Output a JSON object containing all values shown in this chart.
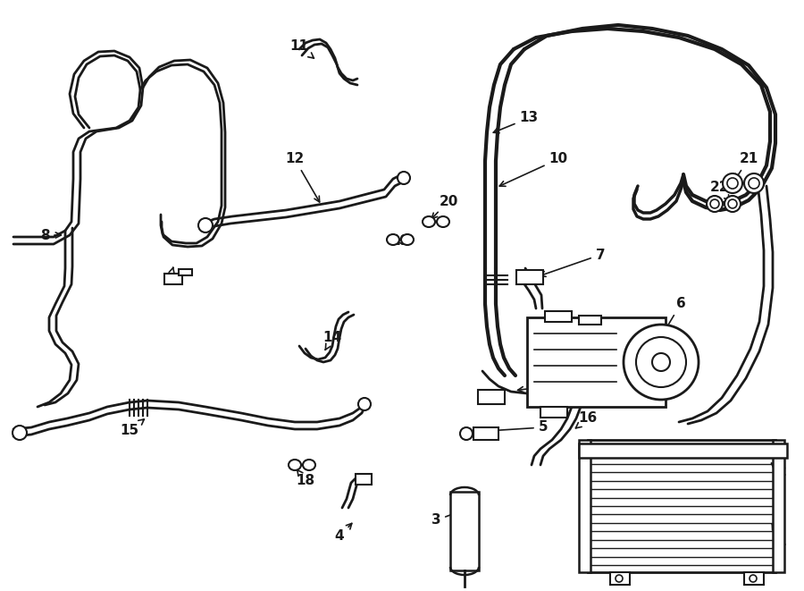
{
  "bg_color": "#ffffff",
  "line_color": "#1a1a1a",
  "text_color": "#1a1a1a",
  "figsize": [
    9.0,
    6.61
  ],
  "dpi": 100
}
